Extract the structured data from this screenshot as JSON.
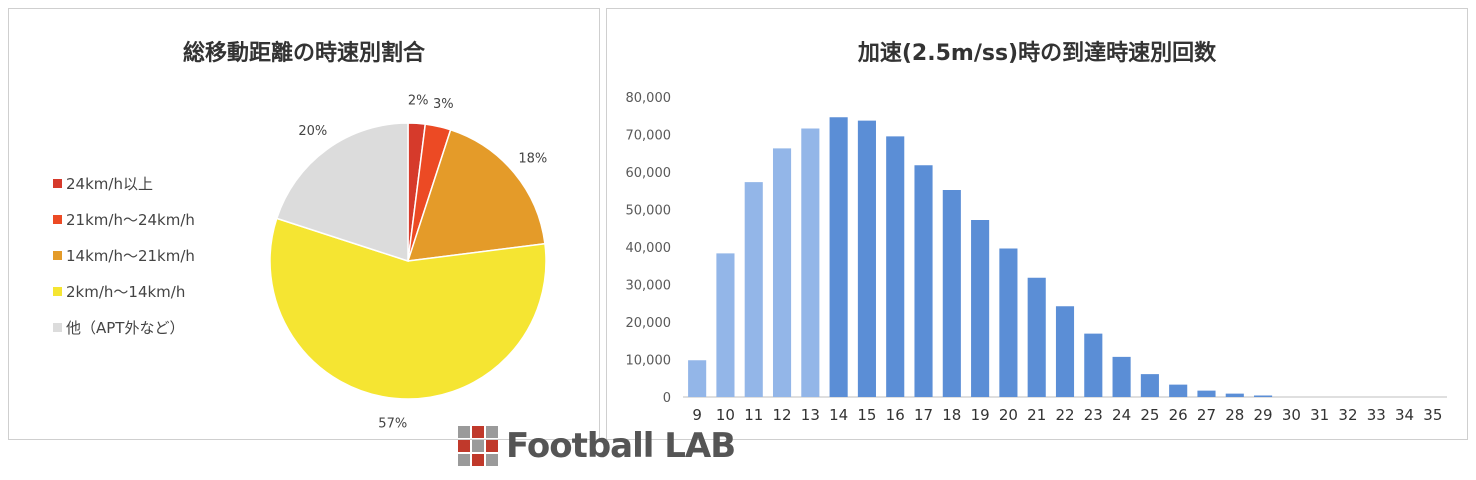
{
  "charts": {
    "pie": {
      "title": "総移動距離の時速別割合",
      "slices": [
        {
          "label": "24km/h以上",
          "value": 2,
          "display": "2%",
          "color": "#d63a2b"
        },
        {
          "label": "21km/h〜24km/h",
          "value": 3,
          "display": "3%",
          "color": "#ec4a24"
        },
        {
          "label": "14km/h〜21km/h",
          "value": 18,
          "display": "18%",
          "color": "#e49b29"
        },
        {
          "label": "2km/h〜14km/h",
          "value": 57,
          "display": "57%",
          "color": "#f5e532"
        },
        {
          "label": "他（APT外など）",
          "value": 20,
          "display": "20%",
          "color": "#dcdcdc"
        }
      ]
    },
    "bar": {
      "title": "加速(2.5m/ss)時の到達時速別回数",
      "y_ticks": [
        "80,000",
        "70,000",
        "60,000",
        "50,000",
        "40,000",
        "30,000",
        "20,000",
        "10,000",
        "0"
      ],
      "light_color": "#93b6e8",
      "dark_color": "#5b8ed6"
    }
  },
  "watermark": {
    "text": "Football LAB"
  },
  "chart_data": [
    {
      "type": "pie",
      "title": "総移動距離の時速別割合",
      "categories": [
        "24km/h以上",
        "21km/h〜24km/h",
        "14km/h〜21km/h",
        "2km/h〜14km/h",
        "他（APT外など）"
      ],
      "values": [
        2,
        3,
        18,
        57,
        20
      ],
      "legend": "left"
    },
    {
      "type": "bar",
      "title": "加速(2.5m/ss)時の到達時速別回数",
      "categories": [
        "9",
        "10",
        "11",
        "12",
        "13",
        "14",
        "15",
        "16",
        "17",
        "18",
        "19",
        "20",
        "21",
        "22",
        "23",
        "24",
        "25",
        "26",
        "27",
        "28",
        "29",
        "30",
        "31",
        "32",
        "33",
        "34",
        "35"
      ],
      "values": [
        9800,
        38300,
        57300,
        66300,
        71600,
        74600,
        73700,
        69500,
        61800,
        55200,
        47200,
        39600,
        31800,
        24200,
        16900,
        10700,
        6100,
        3300,
        1700,
        900,
        400,
        0,
        0,
        0,
        0,
        0,
        0
      ],
      "highlight_from": "14",
      "ylim": [
        0,
        80000
      ],
      "grid": false
    }
  ]
}
